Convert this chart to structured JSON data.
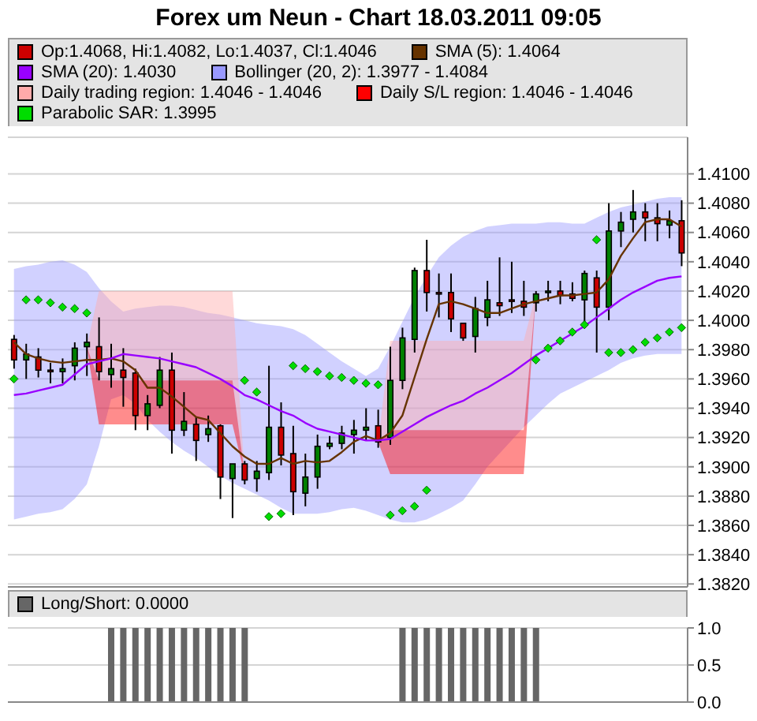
{
  "chart_data": [
    {
      "type": "candlestick",
      "title": "Forex um Neun - Chart 18.03.2011 09:05",
      "categories": [
        null,
        null,
        null,
        null,
        null,
        null,
        null,
        null,
        null,
        null,
        null,
        null,
        null,
        null,
        null,
        null,
        null,
        null,
        null,
        null,
        null,
        null,
        null,
        null,
        null,
        null,
        null,
        null,
        null,
        null,
        null,
        null,
        null,
        null,
        null,
        null,
        null,
        null,
        null,
        null,
        null,
        null,
        null,
        null,
        null,
        null,
        null,
        null,
        null,
        null,
        null,
        null,
        null,
        null,
        null,
        null
      ],
      "ylim": [
        1.3818,
        1.4125
      ],
      "yticks": [
        {
          "value": 1.382,
          "label": "1.3820"
        },
        {
          "value": 1.384,
          "label": "1.3840"
        },
        {
          "value": 1.386,
          "label": "1.3860"
        },
        {
          "value": 1.388,
          "label": "1.3880"
        },
        {
          "value": 1.39,
          "label": "1.3900"
        },
        {
          "value": 1.392,
          "label": "1.3920"
        },
        {
          "value": 1.394,
          "label": "1.3940"
        },
        {
          "value": 1.396,
          "label": "1.3960"
        },
        {
          "value": 1.398,
          "label": "1.3980"
        },
        {
          "value": 1.4,
          "label": "1.4000"
        },
        {
          "value": 1.402,
          "label": "1.4020"
        },
        {
          "value": 1.404,
          "label": "1.4040"
        },
        {
          "value": 1.406,
          "label": "1.4060"
        },
        {
          "value": 1.408,
          "label": "1.4080"
        },
        {
          "value": 1.41,
          "label": "1.4100"
        }
      ],
      "grid": "y",
      "legend": "top",
      "tick_labels": "y",
      "series": [
        {
          "name": "Op:1.4068, Hi:1.4082, Lo:1.4037, Cl:1.4046",
          "color": "#cc0000",
          "colors": [
            "#cc0000",
            "#008000",
            "#cc0000",
            "#cc0000",
            "#008000",
            "#008000",
            "#008000",
            "#cc0000",
            "#008000",
            "#cc0000",
            "#cc0000",
            "#008000",
            "#008000",
            "#cc0000",
            "#008000",
            "#cc0000",
            "#008000",
            "#cc0000",
            "#008000",
            "#cc0000",
            "#008000",
            "#008000",
            "#cc0000",
            "#cc0000",
            "#008000",
            "#008000",
            "#008000",
            "#008000",
            "#008000",
            "#008000",
            "#cc0000",
            "#008000",
            "#008000",
            "#008000",
            "#cc0000",
            "#cc0000",
            "#cc0000",
            "#cc0000",
            "#008000",
            "#008000",
            "#cc0000",
            "#cc0000",
            "#cc0000",
            "#008000",
            "#008000",
            "#cc0000",
            "#cc0000",
            "#008000",
            "#cc0000",
            "#008000",
            "#008000",
            "#008000",
            "#cc0000",
            "#cc0000",
            "#008000",
            "#cc0000"
          ],
          "ohlc": [
            [
              1.3987,
              1.399,
              1.3967,
              1.3973
            ],
            [
              1.3973,
              1.3984,
              1.396,
              1.3977
            ],
            [
              1.3975,
              1.3981,
              1.3961,
              1.3966
            ],
            [
              1.3966,
              1.3971,
              1.3957,
              1.3965
            ],
            [
              1.3965,
              1.3974,
              1.3957,
              1.3967
            ],
            [
              1.3969,
              1.3985,
              1.3959,
              1.3981
            ],
            [
              1.3982,
              1.3991,
              1.3962,
              1.3985
            ],
            [
              1.3982,
              1.4002,
              1.3959,
              1.3965
            ],
            [
              1.3963,
              1.3984,
              1.3954,
              1.3967
            ],
            [
              1.3966,
              1.3981,
              1.3941,
              1.3961
            ],
            [
              1.3964,
              1.3967,
              1.3925,
              1.3935
            ],
            [
              1.3935,
              1.3949,
              1.3925,
              1.3943
            ],
            [
              1.3942,
              1.3975,
              1.394,
              1.3966
            ],
            [
              1.3966,
              1.3978,
              1.3909,
              1.3925
            ],
            [
              1.3925,
              1.3951,
              1.3921,
              1.3931
            ],
            [
              1.3929,
              1.3934,
              1.3904,
              1.3918
            ],
            [
              1.3922,
              1.3935,
              1.3917,
              1.3926
            ],
            [
              1.3928,
              1.3929,
              1.3878,
              1.3893
            ],
            [
              1.3892,
              1.3902,
              1.3865,
              1.3902
            ],
            [
              1.3902,
              1.3904,
              1.3888,
              1.3891
            ],
            [
              1.3892,
              1.3904,
              1.3883,
              1.3897
            ],
            [
              1.3896,
              1.3969,
              1.3891,
              1.3927
            ],
            [
              1.3927,
              1.3944,
              1.3901,
              1.3908
            ],
            [
              1.3909,
              1.3928,
              1.3867,
              1.3883
            ],
            [
              1.3882,
              1.3909,
              1.3873,
              1.3893
            ],
            [
              1.3893,
              1.3922,
              1.3885,
              1.3914
            ],
            [
              1.3914,
              1.3921,
              1.3912,
              1.3916
            ],
            [
              1.3916,
              1.3928,
              1.3912,
              1.3923
            ],
            [
              1.3922,
              1.3932,
              1.3909,
              1.3925
            ],
            [
              1.3925,
              1.394,
              1.3918,
              1.3927
            ],
            [
              1.3928,
              1.3939,
              1.3913,
              1.3917
            ],
            [
              1.392,
              1.3982,
              1.3915,
              1.3959
            ],
            [
              1.3959,
              1.3995,
              1.3953,
              1.3988
            ],
            [
              1.3987,
              1.4036,
              1.3978,
              1.4034
            ],
            [
              1.4034,
              1.4055,
              1.4006,
              1.4019
            ],
            [
              1.4019,
              1.4032,
              1.4002,
              1.4018
            ],
            [
              1.4019,
              1.4032,
              1.3992,
              1.4001
            ],
            [
              1.3998,
              1.3998,
              1.3986,
              1.3988
            ],
            [
              1.3989,
              1.4016,
              1.3978,
              1.4008
            ],
            [
              1.4002,
              1.4027,
              1.3996,
              1.4014
            ],
            [
              1.4012,
              1.4043,
              1.4003,
              1.401
            ],
            [
              1.4014,
              1.404,
              1.4005,
              1.4013
            ],
            [
              1.4013,
              1.4027,
              1.4003,
              1.4009
            ],
            [
              1.4012,
              1.402,
              1.4006,
              1.4018
            ],
            [
              1.4019,
              1.4027,
              1.4013,
              1.402
            ],
            [
              1.402,
              1.4027,
              1.4011,
              1.4017
            ],
            [
              1.4018,
              1.4026,
              1.4013,
              1.4015
            ],
            [
              1.4014,
              1.4034,
              1.3996,
              1.4032
            ],
            [
              1.4029,
              1.4034,
              1.3978,
              1.4009
            ],
            [
              1.4009,
              1.408,
              1.4,
              1.4061
            ],
            [
              1.4061,
              1.4074,
              1.405,
              1.4067
            ],
            [
              1.4069,
              1.4089,
              1.406,
              1.4074
            ],
            [
              1.4074,
              1.408,
              1.4054,
              1.407
            ],
            [
              1.407,
              1.408,
              1.4054,
              1.4066
            ],
            [
              1.4065,
              1.4075,
              1.4056,
              1.4068
            ],
            [
              1.4068,
              1.4082,
              1.4037,
              1.4046
            ]
          ]
        },
        {
          "type": "line",
          "name": "SMA (5): 1.4064",
          "color": "#663300",
          "values": [
            1.3985,
            1.3977,
            1.3974,
            1.3972,
            1.3971,
            1.3972,
            1.3973,
            1.3973,
            1.3974,
            1.3972,
            1.3966,
            1.3954,
            1.3954,
            1.3948,
            1.3941,
            1.3934,
            1.3932,
            1.3923,
            1.3914,
            1.3907,
            1.3902,
            1.3902,
            1.3906,
            1.3902,
            1.3904,
            1.3903,
            1.3904,
            1.391,
            1.3917,
            1.3921,
            1.3918,
            1.3923,
            1.3935,
            1.3961,
            1.3987,
            1.4011,
            1.4013,
            1.4011,
            1.4008,
            1.4005,
            1.4005,
            1.4008,
            1.4011,
            1.4013,
            1.4015,
            1.4017,
            1.4017,
            1.4018,
            1.4019,
            1.4028,
            1.4044,
            1.4056,
            1.4067,
            1.4069,
            1.4069,
            1.4064
          ]
        },
        {
          "type": "line",
          "name": "SMA (20): 1.4030",
          "color": "#9900ff",
          "values": [
            1.3949,
            1.395,
            1.3952,
            1.3954,
            1.3956,
            1.3963,
            1.397,
            1.3972,
            1.3974,
            1.3977,
            1.3976,
            1.3975,
            1.3974,
            1.3972,
            1.397,
            1.3968,
            1.3964,
            1.396,
            1.3955,
            1.3949,
            1.3946,
            1.3942,
            1.3938,
            1.3935,
            1.393,
            1.3926,
            1.3924,
            1.3922,
            1.392,
            1.3918,
            1.3918,
            1.3919,
            1.3924,
            1.3929,
            1.3934,
            1.3938,
            1.3942,
            1.3945,
            1.395,
            1.3954,
            1.3959,
            1.3964,
            1.397,
            1.3976,
            1.3981,
            1.3986,
            1.3991,
            1.3996,
            1.4002,
            1.4008,
            1.4014,
            1.4019,
            1.4023,
            1.4027,
            1.4029,
            1.403
          ]
        },
        {
          "type": "area",
          "name": "Bollinger (20, 2): 1.3977 - 1.4084",
          "color": "#9999ff",
          "values": [
            null,
            null,
            null,
            null,
            null,
            null,
            null,
            null,
            null,
            null,
            null,
            null,
            null,
            null,
            null,
            null,
            null,
            null,
            null,
            null,
            null,
            null,
            null,
            null,
            null,
            null,
            null,
            null,
            null,
            null,
            null,
            null,
            null,
            null,
            null,
            null,
            null,
            null,
            null,
            null,
            null,
            null,
            null,
            null,
            null,
            null,
            null,
            null,
            null,
            null,
            null,
            null,
            null,
            null,
            null,
            null
          ],
          "upper": [
            1.4035,
            1.4037,
            1.4038,
            1.404,
            1.4041,
            1.4038,
            1.4033,
            1.4022,
            1.4013,
            1.4006,
            1.4008,
            1.4009,
            1.401,
            1.401,
            1.4009,
            1.4007,
            1.4005,
            1.4004,
            1.4002,
            1.4,
            1.3998,
            1.3997,
            1.3996,
            1.3994,
            1.399,
            1.3984,
            1.3978,
            1.3972,
            1.3967,
            1.3962,
            1.3967,
            1.3982,
            1.3999,
            1.4016,
            1.403,
            1.4043,
            1.4051,
            1.4057,
            1.4061,
            1.4064,
            1.4065,
            1.4066,
            1.4066,
            1.4066,
            1.4067,
            1.4067,
            1.4066,
            1.4066,
            1.407,
            1.4074,
            1.4077,
            1.4079,
            1.4081,
            1.4083,
            1.4084,
            1.4084
          ],
          "lower": [
            1.3864,
            1.3866,
            1.3868,
            1.3869,
            1.3871,
            1.3878,
            1.3888,
            1.3914,
            1.3946,
            1.3949,
            1.3943,
            1.3932,
            1.3924,
            1.3917,
            1.3911,
            1.3906,
            1.39,
            1.3894,
            1.3889,
            1.3885,
            1.3881,
            1.3877,
            1.3872,
            1.3868,
            1.3868,
            1.3868,
            1.3869,
            1.3871,
            1.3872,
            1.387,
            1.3867,
            1.3864,
            1.3862,
            1.3862,
            1.3864,
            1.3868,
            1.3872,
            1.3877,
            1.3888,
            1.39,
            1.3909,
            1.3918,
            1.3927,
            1.3935,
            1.3943,
            1.395,
            1.3954,
            1.3958,
            1.3962,
            1.3966,
            1.3971,
            1.3974,
            1.3976,
            1.3977,
            1.3977,
            1.3977
          ]
        },
        {
          "type": "area",
          "name": "Daily trading region: 1.4046 - 1.4046",
          "color": "#ffaaaa",
          "values": [
            null,
            null,
            null,
            null,
            null,
            null,
            null,
            null,
            null,
            null,
            null,
            null,
            null,
            null,
            null,
            null,
            null,
            null,
            null,
            null,
            null,
            null,
            null,
            null,
            null,
            null,
            null,
            null,
            null,
            null,
            null,
            null,
            null,
            null,
            null,
            null,
            null,
            null,
            null,
            null,
            null,
            null,
            null,
            null,
            null,
            null,
            null,
            null,
            null,
            null,
            null,
            null,
            null,
            null,
            null,
            null
          ],
          "upper": [
            null,
            null,
            null,
            null,
            null,
            null,
            1.3982,
            1.402,
            1.402,
            1.402,
            1.402,
            1.402,
            1.402,
            1.402,
            1.402,
            1.402,
            1.402,
            1.402,
            1.402,
            1.3895,
            null,
            null,
            null,
            null,
            null,
            null,
            null,
            null,
            null,
            null,
            1.3917,
            1.3986,
            1.3986,
            1.3986,
            1.3986,
            1.3986,
            1.3986,
            1.3986,
            1.3986,
            1.3986,
            1.3986,
            1.3986,
            1.3986,
            1.4018,
            null,
            null,
            null,
            null,
            null,
            null,
            null,
            null,
            null,
            null,
            null,
            null
          ],
          "lower": [
            null,
            null,
            null,
            null,
            null,
            null,
            1.3982,
            1.3959,
            1.3959,
            1.3959,
            1.3959,
            1.3959,
            1.3959,
            1.3959,
            1.3959,
            1.3959,
            1.3959,
            1.3959,
            1.3959,
            1.3895,
            null,
            null,
            null,
            null,
            null,
            null,
            null,
            null,
            null,
            null,
            1.3917,
            1.3925,
            1.3925,
            1.3925,
            1.3925,
            1.3925,
            1.3925,
            1.3925,
            1.3925,
            1.3925,
            1.3925,
            1.3925,
            1.3925,
            1.4018,
            null,
            null,
            null,
            null,
            null,
            null,
            null,
            null,
            null,
            null,
            null,
            null
          ]
        },
        {
          "type": "area",
          "name": "Daily S/L region: 1.4046 - 1.4046",
          "color": "#ff0000",
          "values": [
            null,
            null,
            null,
            null,
            null,
            null,
            null,
            null,
            null,
            null,
            null,
            null,
            null,
            null,
            null,
            null,
            null,
            null,
            null,
            null,
            null,
            null,
            null,
            null,
            null,
            null,
            null,
            null,
            null,
            null,
            null,
            null,
            null,
            null,
            null,
            null,
            null,
            null,
            null,
            null,
            null,
            null,
            null,
            null,
            null,
            null,
            null,
            null,
            null,
            null,
            null,
            null,
            null,
            null,
            null,
            null
          ],
          "upper": [
            null,
            null,
            null,
            null,
            null,
            null,
            1.3982,
            1.3959,
            1.3959,
            1.3959,
            1.3959,
            1.3959,
            1.3959,
            1.3959,
            1.3959,
            1.3959,
            1.3959,
            1.3959,
            1.3959,
            1.3895,
            null,
            null,
            null,
            null,
            null,
            null,
            null,
            null,
            null,
            null,
            1.3917,
            1.3925,
            1.3925,
            1.3925,
            1.3925,
            1.3925,
            1.3925,
            1.3925,
            1.3925,
            1.3925,
            1.3925,
            1.3925,
            1.3925,
            1.4018,
            null,
            null,
            null,
            null,
            null,
            null,
            null,
            null,
            null,
            null,
            null,
            null
          ],
          "lower": [
            null,
            null,
            null,
            null,
            null,
            null,
            1.3982,
            1.3929,
            1.3929,
            1.3929,
            1.3929,
            1.3929,
            1.3929,
            1.3929,
            1.3929,
            1.3929,
            1.3929,
            1.3929,
            1.3929,
            1.3895,
            null,
            null,
            null,
            null,
            null,
            null,
            null,
            null,
            null,
            null,
            1.3917,
            1.3895,
            1.3895,
            1.3895,
            1.3895,
            1.3895,
            1.3895,
            1.3895,
            1.3895,
            1.3895,
            1.3895,
            1.3895,
            1.3895,
            1.4018,
            null,
            null,
            null,
            null,
            null,
            null,
            null,
            null,
            null,
            null,
            null,
            null
          ]
        },
        {
          "type": "scatter",
          "name": "Parabolic SAR: 1.3995",
          "color": "#00dd00",
          "marker": "diamond",
          "values": [
            1.396,
            1.4014,
            1.4014,
            1.4012,
            1.4009,
            1.4008,
            1.4005,
            null,
            null,
            null,
            null,
            null,
            null,
            null,
            null,
            null,
            null,
            null,
            null,
            1.3959,
            1.3951,
            1.3866,
            1.3868,
            1.3969,
            1.3967,
            1.3965,
            1.3962,
            1.3961,
            1.3959,
            1.3957,
            1.3956,
            1.3867,
            1.387,
            1.3873,
            1.3884,
            null,
            null,
            null,
            null,
            null,
            null,
            null,
            null,
            1.3973,
            1.3981,
            1.3986,
            1.3992,
            1.3997,
            1.4055,
            1.3978,
            1.3978,
            1.398,
            1.3985,
            1.3988,
            1.3992,
            1.3995
          ]
        }
      ]
    },
    {
      "type": "bar",
      "categories": [
        null,
        null,
        null,
        null,
        null,
        null,
        null,
        null,
        null,
        null,
        null,
        null,
        null,
        null,
        null,
        null,
        null,
        null,
        null,
        null,
        null,
        null,
        null,
        null,
        null,
        null,
        null,
        null,
        null,
        null,
        null,
        null,
        null,
        null,
        null,
        null,
        null,
        null,
        null,
        null,
        null,
        null,
        null,
        null,
        null,
        null,
        null,
        null,
        null,
        null,
        null,
        null,
        null,
        null,
        null,
        null
      ],
      "ylim": [
        0,
        1
      ],
      "yticks": [
        {
          "value": 0,
          "label": "0.0"
        },
        {
          "value": 0.5,
          "label": "0.5"
        },
        {
          "value": 1,
          "label": "1.0"
        }
      ],
      "grid": "y",
      "legend": "top",
      "tick_labels": "y",
      "series": [
        {
          "name": "Long/Short: 0.0000",
          "color": "#666666",
          "values": [
            0,
            0,
            0,
            0,
            0,
            0,
            0,
            0,
            1,
            1,
            1,
            1,
            1,
            1,
            1,
            1,
            1,
            1,
            1,
            1,
            0,
            0,
            0,
            0,
            0,
            0,
            0,
            0,
            0,
            0,
            0,
            0,
            1,
            1,
            1,
            1,
            1,
            1,
            1,
            1,
            1,
            1,
            1,
            1,
            0,
            0,
            0,
            0,
            0,
            0,
            0,
            0,
            0,
            0,
            0,
            0
          ]
        }
      ]
    }
  ]
}
